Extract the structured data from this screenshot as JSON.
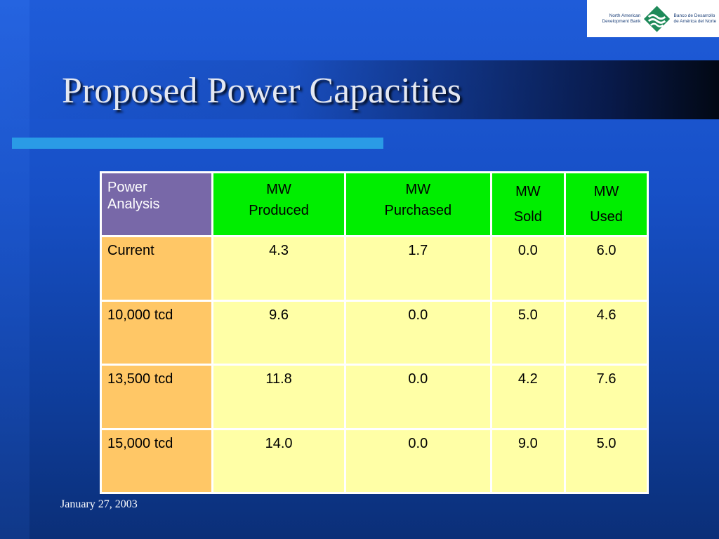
{
  "slide": {
    "title": "Proposed Power Capacities",
    "date": "January 27, 2003"
  },
  "logo": {
    "left_text": "North American\nDevelopment Bank",
    "right_text": "Banco de Desarrollo\nde América del Norte"
  },
  "table": {
    "corner_label": "Power\nAnalysis",
    "headers": [
      "MW\nProduced",
      "MW\nPurchased",
      "MW\nSold",
      "MW\nUsed"
    ],
    "rows": [
      {
        "label": "Current",
        "values": [
          "4.3",
          "1.7",
          "0.0",
          "6.0"
        ]
      },
      {
        "label": "10,000 tcd",
        "values": [
          "9.6",
          "0.0",
          "5.0",
          "4.6"
        ]
      },
      {
        "label": "13,500 tcd",
        "values": [
          "11.8",
          "0.0",
          "4.2",
          "7.6"
        ]
      },
      {
        "label": "15,000 tcd",
        "values": [
          "14.0",
          "0.0",
          "9.0",
          "5.0"
        ]
      }
    ]
  },
  "colors": {
    "background": "#1750c7",
    "accent_bar": "#2a9be6",
    "corner_header": "#7868a8",
    "column_header": "#00ee00",
    "row_header": "#ffc766",
    "data_cell": "#ffffa6"
  },
  "icons": {
    "logo_mark": "nadbank-logo-icon"
  }
}
